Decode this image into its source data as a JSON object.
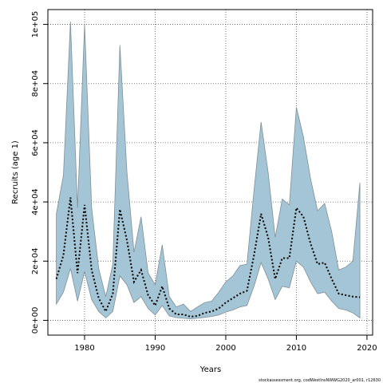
{
  "chart_data": {
    "type": "area",
    "xlabel": "Years",
    "ylabel": "Recruits (age 1)",
    "xlim": [
      1974.8,
      2020.8
    ],
    "ylim": [
      -5000,
      105000
    ],
    "x_ticks": [
      1980,
      1990,
      2000,
      2010,
      2020
    ],
    "x_tick_labels": [
      "1980",
      "1990",
      "2000",
      "2010",
      "2020"
    ],
    "y_ticks": [
      0,
      20000,
      40000,
      60000,
      80000,
      100000
    ],
    "y_tick_labels": [
      "0e+00",
      "2e+04",
      "4e+04",
      "6e+04",
      "8e+04",
      "1e+05"
    ],
    "grid": true,
    "source_note": "stockassessment.org, codWestInsNWWG2020_ar001, r12630",
    "colors": {
      "band_fill": "#a4c5d5",
      "band_stroke": "#7f8f99",
      "line": "#000000"
    },
    "x": [
      1976,
      1977,
      1978,
      1979,
      1980,
      1981,
      1982,
      1983,
      1984,
      1985,
      1986,
      1987,
      1988,
      1989,
      1990,
      1991,
      1992,
      1993,
      1994,
      1995,
      1996,
      1997,
      1998,
      1999,
      2000,
      2001,
      2002,
      2003,
      2004,
      2005,
      2006,
      2007,
      2008,
      2009,
      2010,
      2011,
      2012,
      2013,
      2014,
      2015,
      2016,
      2017,
      2018,
      2019
    ],
    "series": [
      {
        "kind": "estimate",
        "values": [
          14000,
          22000,
          41500,
          16000,
          39000,
          17000,
          7500,
          3000,
          9000,
          37500,
          27000,
          13000,
          17000,
          8500,
          5000,
          11500,
          4000,
          2000,
          2000,
          1200,
          1500,
          2500,
          3000,
          4000,
          6000,
          7500,
          9000,
          10000,
          22000,
          36000,
          28000,
          14000,
          21000,
          21000,
          38000,
          35000,
          26000,
          19000,
          19500,
          14000,
          9000,
          8500,
          8000,
          7800
        ]
      },
      {
        "kind": "upper",
        "values": [
          36000,
          49000,
          101000,
          38000,
          100000,
          38000,
          17500,
          8000,
          19000,
          93000,
          50000,
          23000,
          35000,
          16000,
          12000,
          25500,
          8000,
          4500,
          5500,
          3000,
          4500,
          6000,
          6500,
          9500,
          13000,
          15000,
          18500,
          19000,
          44000,
          67000,
          50000,
          28000,
          41000,
          39000,
          72000,
          62000,
          48000,
          37000,
          39500,
          30000,
          17000,
          18000,
          20000,
          46500
        ]
      },
      {
        "kind": "lower",
        "values": [
          5500,
          9500,
          17500,
          6500,
          16500,
          7000,
          3000,
          800,
          3000,
          15000,
          12000,
          6000,
          8000,
          4000,
          1800,
          5000,
          1500,
          900,
          700,
          500,
          700,
          1000,
          1300,
          1800,
          2800,
          3500,
          4500,
          5000,
          11500,
          19500,
          14000,
          7000,
          11500,
          11000,
          20000,
          18000,
          13000,
          9000,
          9500,
          6500,
          4000,
          3500,
          2500,
          800
        ]
      }
    ]
  }
}
